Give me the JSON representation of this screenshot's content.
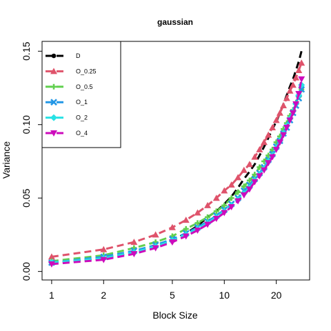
{
  "chart_data": {
    "type": "line",
    "title": "gaussian",
    "xlabel": "Block Size",
    "ylabel": "Variance",
    "xscale": "log",
    "xlim": [
      1,
      30
    ],
    "ylim": [
      0,
      0.15
    ],
    "xticks": [
      1,
      2,
      5,
      10,
      20
    ],
    "xtick_labels": [
      "1",
      "2",
      "5",
      "10",
      "20"
    ],
    "yticks": [
      0,
      0.05,
      0.1,
      0.15
    ],
    "ytick_labels": [
      "0.00",
      "0.05",
      "0.10",
      "0.15"
    ],
    "legend_position": "top-left",
    "grid": false,
    "x": [
      1,
      2,
      3,
      4,
      5,
      6,
      7,
      8,
      9,
      10,
      11,
      12,
      13,
      14,
      15,
      16,
      17,
      18,
      19,
      20,
      21,
      22,
      23,
      24,
      25,
      26,
      27,
      28
    ],
    "series": [
      {
        "name": "D",
        "color": "#000000",
        "marker": "circle",
        "values": [
          0.006,
          0.009,
          0.013,
          0.017,
          0.021,
          0.026,
          0.031,
          0.037,
          0.041,
          0.046,
          0.051,
          0.057,
          0.063,
          0.068,
          0.073,
          0.079,
          0.085,
          0.091,
          0.097,
          0.102,
          0.108,
          0.114,
          0.12,
          0.126,
          0.131,
          0.137,
          0.143,
          0.15
        ]
      },
      {
        "name": "O_0.25",
        "color": "#DF536B",
        "marker": "triangle",
        "values": [
          0.01,
          0.015,
          0.02,
          0.025,
          0.03,
          0.035,
          0.04,
          0.045,
          0.05,
          0.055,
          0.059,
          0.064,
          0.069,
          0.073,
          0.078,
          0.083,
          0.088,
          0.093,
          0.098,
          0.103,
          0.108,
          0.113,
          0.118,
          0.123,
          0.127,
          0.132,
          0.137,
          0.142
        ]
      },
      {
        "name": "O_0.5",
        "color": "#61D04F",
        "marker": "plus",
        "values": [
          0.007,
          0.011,
          0.016,
          0.02,
          0.024,
          0.029,
          0.033,
          0.037,
          0.041,
          0.045,
          0.05,
          0.054,
          0.058,
          0.062,
          0.066,
          0.071,
          0.075,
          0.079,
          0.083,
          0.088,
          0.092,
          0.097,
          0.101,
          0.106,
          0.11,
          0.115,
          0.119,
          0.124
        ]
      },
      {
        "name": "O_1",
        "color": "#2297E6",
        "marker": "cross",
        "values": [
          0.006,
          0.01,
          0.014,
          0.018,
          0.022,
          0.026,
          0.03,
          0.034,
          0.038,
          0.042,
          0.046,
          0.05,
          0.055,
          0.059,
          0.063,
          0.067,
          0.071,
          0.076,
          0.08,
          0.085,
          0.089,
          0.094,
          0.098,
          0.103,
          0.108,
          0.113,
          0.118,
          0.124
        ]
      },
      {
        "name": "O_2",
        "color": "#28E2E5",
        "marker": "diamond",
        "values": [
          0.006,
          0.009,
          0.013,
          0.017,
          0.021,
          0.025,
          0.029,
          0.033,
          0.037,
          0.041,
          0.045,
          0.049,
          0.053,
          0.057,
          0.062,
          0.066,
          0.07,
          0.075,
          0.079,
          0.084,
          0.089,
          0.094,
          0.099,
          0.104,
          0.109,
          0.114,
          0.12,
          0.127
        ]
      },
      {
        "name": "O_4",
        "color": "#CD0BBC",
        "marker": "triangle-down",
        "values": [
          0.005,
          0.008,
          0.012,
          0.016,
          0.02,
          0.024,
          0.028,
          0.032,
          0.036,
          0.04,
          0.044,
          0.048,
          0.052,
          0.056,
          0.061,
          0.065,
          0.069,
          0.074,
          0.078,
          0.083,
          0.088,
          0.093,
          0.098,
          0.103,
          0.108,
          0.114,
          0.121,
          0.131
        ]
      }
    ]
  }
}
